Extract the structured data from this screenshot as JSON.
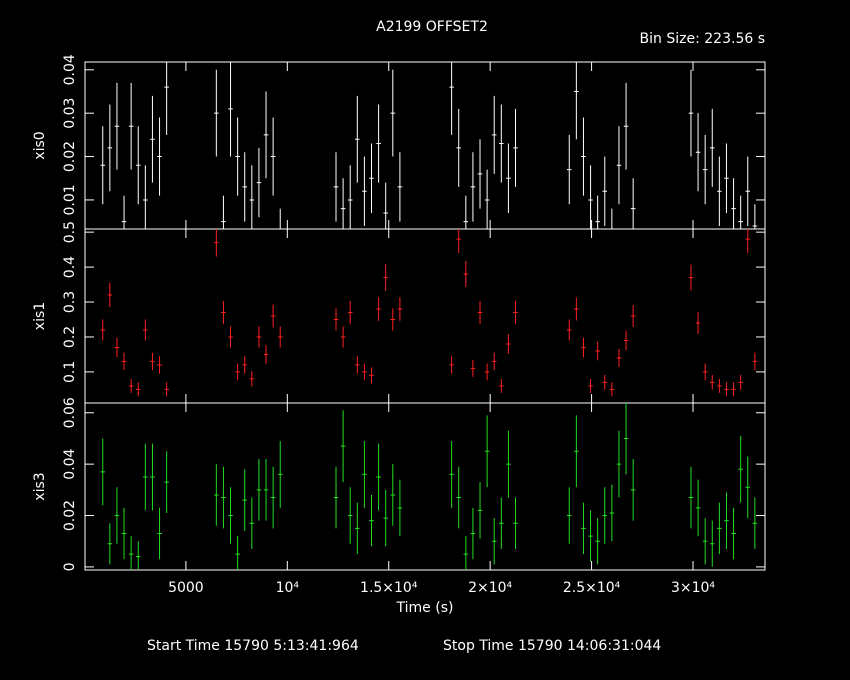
{
  "chart_data": {
    "type": "errorbar",
    "title": "A2199 OFFSET2",
    "bin_size": {
      "value": 223.56,
      "label": "Bin Size: 223.56 s"
    },
    "xlabel": "Time (s)",
    "start_time": "Start Time 15790  5:13:41:964",
    "stop_time": "Stop Time 15790 14:06:31:044",
    "xlim": [
      25,
      33550
    ],
    "xticks": [
      5000,
      {
        "value": 10000,
        "label": "10⁴"
      },
      {
        "value": 15000,
        "label": "1.5×10⁴"
      },
      {
        "value": 20000,
        "label": "2×10⁴"
      },
      {
        "value": 25000,
        "label": "2.5×10⁴"
      },
      {
        "value": 30000,
        "label": "3×10⁴"
      }
    ],
    "x": [
      900,
      1250,
      1600,
      1950,
      2300,
      2650,
      3000,
      3350,
      3700,
      4050,
      6500,
      6850,
      7200,
      7550,
      7900,
      8250,
      8600,
      8950,
      9300,
      9650,
      12400,
      12750,
      13100,
      13450,
      13800,
      14150,
      14500,
      14850,
      15200,
      15550,
      18100,
      18450,
      18800,
      19150,
      19500,
      19850,
      20200,
      20550,
      20900,
      21250,
      23900,
      24250,
      24600,
      24950,
      25300,
      25650,
      26000,
      26350,
      26700,
      27050,
      29900,
      30250,
      30600,
      30950,
      31300,
      31650,
      32000,
      32350,
      32700,
      33050
    ],
    "series": [
      {
        "name": "xis0",
        "color": "#ffffff",
        "ylim": [
          0.0033,
          0.0418
        ],
        "yticks": [
          0.01,
          0.02,
          0.03,
          0.04
        ],
        "values": [
          0.018,
          0.022,
          0.027,
          0.005,
          0.027,
          0.018,
          0.01,
          0.024,
          0.02,
          0.036,
          0.03,
          0.005,
          0.031,
          0.02,
          0.013,
          0.01,
          0.014,
          0.025,
          0.02,
          0.003,
          0.013,
          0.008,
          0.01,
          0.024,
          0.012,
          0.015,
          0.023,
          0.007,
          0.03,
          0.013,
          0.036,
          0.022,
          0.005,
          0.013,
          0.016,
          0.01,
          0.025,
          0.023,
          0.015,
          0.022,
          0.017,
          0.035,
          0.02,
          0.01,
          0.005,
          0.012,
          0.003,
          0.018,
          0.027,
          0.008,
          0.03,
          0.021,
          0.017,
          0.022,
          0.012,
          0.015,
          0.008,
          0.005,
          0.012,
          0.004
        ],
        "errors": [
          0.009,
          0.01,
          0.01,
          0.006,
          0.01,
          0.009,
          0.008,
          0.01,
          0.009,
          0.011,
          0.01,
          0.006,
          0.011,
          0.009,
          0.008,
          0.008,
          0.008,
          0.01,
          0.009,
          0.005,
          0.008,
          0.007,
          0.008,
          0.01,
          0.008,
          0.008,
          0.009,
          0.007,
          0.01,
          0.008,
          0.011,
          0.009,
          0.006,
          0.008,
          0.008,
          0.007,
          0.009,
          0.009,
          0.008,
          0.009,
          0.008,
          0.011,
          0.009,
          0.008,
          0.006,
          0.008,
          0.005,
          0.009,
          0.01,
          0.007,
          0.01,
          0.009,
          0.008,
          0.009,
          0.008,
          0.008,
          0.007,
          0.006,
          0.008,
          0.005
        ]
      },
      {
        "name": "xis1",
        "color": "#ff2020",
        "ylim": [
          0.011,
          0.509
        ],
        "yticks": [
          0.1,
          0.2,
          0.3,
          0.4,
          0.5
        ],
        "values": [
          0.22,
          0.32,
          0.17,
          0.13,
          0.06,
          0.05,
          0.22,
          0.13,
          0.12,
          0.05,
          0.47,
          0.27,
          0.2,
          0.1,
          0.12,
          0.08,
          0.2,
          0.15,
          0.26,
          0.2,
          0.25,
          0.2,
          0.27,
          0.12,
          0.1,
          0.09,
          0.28,
          0.37,
          0.25,
          0.28,
          0.12,
          0.48,
          0.38,
          0.11,
          0.27,
          0.1,
          0.13,
          0.06,
          0.18,
          0.27,
          0.22,
          0.28,
          0.17,
          0.06,
          0.16,
          0.07,
          0.05,
          0.14,
          0.19,
          0.26,
          0.37,
          0.24,
          0.1,
          0.07,
          0.06,
          0.05,
          0.05,
          0.07,
          0.48,
          0.13
        ],
        "errors": [
          0.03,
          0.035,
          0.028,
          0.025,
          0.02,
          0.02,
          0.03,
          0.025,
          0.025,
          0.02,
          0.04,
          0.033,
          0.03,
          0.024,
          0.025,
          0.022,
          0.03,
          0.027,
          0.033,
          0.03,
          0.032,
          0.03,
          0.033,
          0.025,
          0.024,
          0.023,
          0.034,
          0.038,
          0.032,
          0.034,
          0.025,
          0.04,
          0.037,
          0.024,
          0.033,
          0.024,
          0.025,
          0.02,
          0.028,
          0.033,
          0.03,
          0.033,
          0.028,
          0.02,
          0.027,
          0.021,
          0.02,
          0.026,
          0.028,
          0.032,
          0.037,
          0.031,
          0.024,
          0.021,
          0.02,
          0.02,
          0.02,
          0.021,
          0.04,
          0.025
        ]
      },
      {
        "name": "xis3",
        "color": "#22dd22",
        "ylim": [
          -0.0012,
          0.0638
        ],
        "yticks": [
          0,
          0.02,
          0.04,
          0.06
        ],
        "values": [
          0.037,
          0.009,
          0.02,
          0.013,
          0.005,
          0.004,
          0.035,
          0.035,
          0.013,
          0.033,
          0.028,
          0.027,
          0.02,
          0.005,
          0.026,
          0.017,
          0.03,
          0.03,
          0.027,
          0.036,
          0.027,
          0.047,
          0.02,
          0.015,
          0.036,
          0.018,
          0.035,
          0.019,
          0.028,
          0.023,
          0.036,
          0.027,
          0.005,
          0.013,
          0.022,
          0.045,
          0.01,
          0.017,
          0.04,
          0.017,
          0.02,
          0.045,
          0.015,
          0.012,
          0.01,
          0.02,
          0.021,
          0.04,
          0.05,
          0.03,
          0.027,
          0.023,
          0.01,
          0.009,
          0.015,
          0.018,
          0.013,
          0.038,
          0.031,
          0.017
        ],
        "errors": [
          0.013,
          0.008,
          0.011,
          0.01,
          0.007,
          0.006,
          0.013,
          0.013,
          0.01,
          0.012,
          0.012,
          0.012,
          0.011,
          0.007,
          0.012,
          0.01,
          0.012,
          0.012,
          0.012,
          0.013,
          0.012,
          0.014,
          0.011,
          0.01,
          0.013,
          0.01,
          0.013,
          0.011,
          0.012,
          0.011,
          0.013,
          0.012,
          0.007,
          0.01,
          0.011,
          0.014,
          0.009,
          0.01,
          0.013,
          0.01,
          0.011,
          0.014,
          0.01,
          0.01,
          0.009,
          0.011,
          0.011,
          0.013,
          0.014,
          0.012,
          0.012,
          0.011,
          0.009,
          0.009,
          0.01,
          0.011,
          0.01,
          0.013,
          0.012,
          0.01
        ]
      }
    ]
  }
}
